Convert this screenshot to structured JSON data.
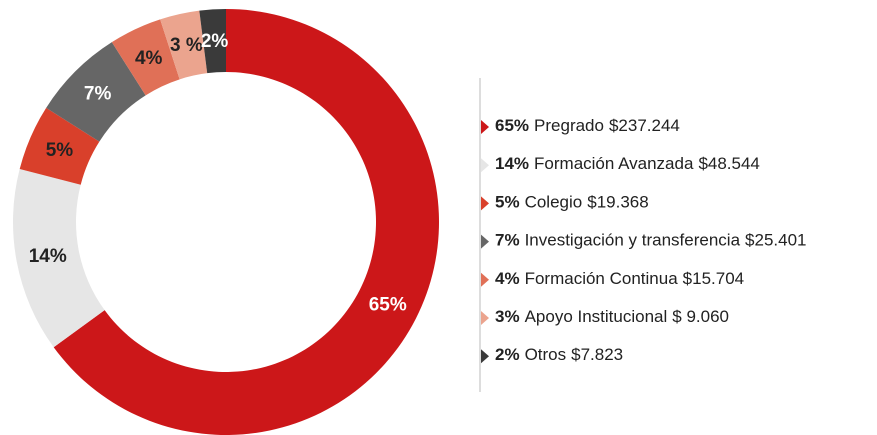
{
  "chart_data": {
    "type": "donut",
    "categories": [
      "Pregrado",
      "Formación Avanzada",
      "Colegio",
      "Investigación y transferencia",
      "Formación Continua",
      "Apoyo Institucional",
      "Otros"
    ],
    "values": [
      65,
      14,
      5,
      7,
      4,
      3,
      2
    ],
    "value_labels": [
      "65%",
      "14%",
      "5%",
      "7%",
      "4%",
      "3 %",
      "2%"
    ],
    "legend_value_labels": [
      "65%",
      "14%",
      "5%",
      "7%",
      "4%",
      "3%",
      "2%"
    ],
    "amounts": [
      237244,
      48544,
      19368,
      25401,
      15704,
      9060,
      7823
    ],
    "amount_labels": [
      "$237.244",
      "$48.544",
      "$19.368",
      "$25.401",
      "$15.704",
      "$ 9.060",
      "$7.823"
    ],
    "colors": [
      "#cc1719",
      "#e6e6e6",
      "#d9402b",
      "#666666",
      "#e07057",
      "#eba48e",
      "#3a3a3a"
    ],
    "label_colors": [
      "#ffffff",
      "#222222",
      "#222222",
      "#ffffff",
      "#222222",
      "#222222",
      "#ffffff"
    ]
  }
}
